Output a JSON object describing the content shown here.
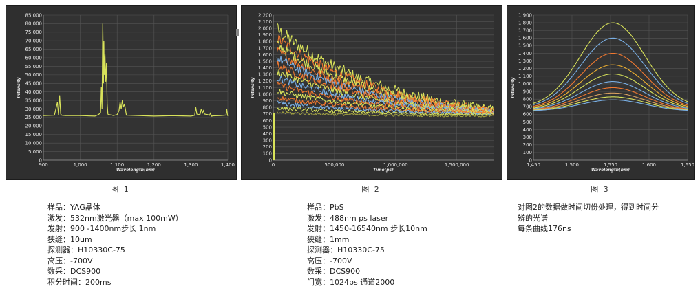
{
  "chart_data": [
    {
      "type": "line",
      "xlabel": "Wavelength(nm)",
      "ylabel": "Intensity",
      "xlim": [
        900,
        1400
      ],
      "ylim": [
        0,
        85000
      ],
      "xticks": [
        "900",
        "1,000",
        "1,100",
        "1,200",
        "1,300",
        "1,400"
      ],
      "yticks": [
        "0",
        "5,000",
        "10,000",
        "15,000",
        "20,000",
        "25,000",
        "30,000",
        "35,000",
        "40,000",
        "45,000",
        "50,000",
        "55,000",
        "60,000",
        "65,000",
        "70,000",
        "75,000",
        "80,000",
        "85,000"
      ],
      "grid": true,
      "color": "#d8e25a",
      "series": [
        {
          "x": [
            900,
            930,
            938,
            941,
            944,
            947,
            950,
            960,
            1000,
            1040,
            1050,
            1055,
            1057,
            1059,
            1061,
            1063,
            1064,
            1065,
            1067,
            1069,
            1071,
            1073,
            1075,
            1080,
            1090,
            1100,
            1105,
            1108,
            1111,
            1114,
            1117,
            1120,
            1125,
            1150,
            1200,
            1250,
            1300,
            1310,
            1313,
            1316,
            1320,
            1325,
            1328,
            1331,
            1334,
            1337,
            1345,
            1350,
            1353,
            1356,
            1360,
            1380,
            1395,
            1397,
            1399,
            1400
          ],
          "y": [
            26000,
            26500,
            34000,
            26500,
            38000,
            27000,
            26000,
            26000,
            26000,
            26000,
            26500,
            28000,
            43000,
            30000,
            80000,
            45000,
            70000,
            50000,
            62000,
            46000,
            57000,
            33000,
            27000,
            26500,
            26000,
            26500,
            29000,
            34000,
            30000,
            35000,
            31000,
            33000,
            26500,
            26000,
            26000,
            26000,
            26000,
            26500,
            31000,
            27000,
            26500,
            27000,
            30000,
            27500,
            29000,
            27000,
            26500,
            26000,
            27500,
            26000,
            26000,
            26000,
            26500,
            30000,
            26500,
            26000
          ]
        }
      ]
    },
    {
      "type": "line",
      "xlabel": "Time(ps)",
      "ylabel": "Intensity",
      "xlim": [
        0,
        1800000
      ],
      "ylim": [
        0,
        2200
      ],
      "xticks": [
        "0",
        "500,000",
        "1,000,000",
        "1,500,000"
      ],
      "yticks": [
        "0",
        "100",
        "200",
        "300",
        "400",
        "500",
        "600",
        "700",
        "800",
        "900",
        "1,000",
        "1,100",
        "1,200",
        "1,300",
        "1,400",
        "1,500",
        "1,600",
        "1,700",
        "1,800",
        "1,900",
        "2,000",
        "2,100",
        "2,200"
      ],
      "grid": true,
      "series": [
        {
          "color": "#d8e25a",
          "start": 1990,
          "end": 770,
          "noise": 110
        },
        {
          "color": "#f07830",
          "start": 1850,
          "end": 760,
          "noise": 90
        },
        {
          "color": "#d8e25a",
          "start": 1750,
          "end": 750,
          "noise": 80
        },
        {
          "color": "#f07830",
          "start": 1650,
          "end": 745,
          "noise": 80
        },
        {
          "color": "#7ab0e6",
          "start": 1550,
          "end": 740,
          "noise": 70
        },
        {
          "color": "#f07830",
          "start": 1450,
          "end": 735,
          "noise": 65
        },
        {
          "color": "#d8e25a",
          "start": 1350,
          "end": 730,
          "noise": 60
        },
        {
          "color": "#7ab0e6",
          "start": 1250,
          "end": 725,
          "noise": 55
        },
        {
          "color": "#f07830",
          "start": 1150,
          "end": 720,
          "noise": 50
        },
        {
          "color": "#d8e25a",
          "start": 1050,
          "end": 715,
          "noise": 45
        },
        {
          "color": "#f07830",
          "start": 950,
          "end": 705,
          "noise": 40
        },
        {
          "color": "#7ab0e6",
          "start": 870,
          "end": 700,
          "noise": 35
        },
        {
          "color": "#d8e25a",
          "start": 790,
          "end": 690,
          "noise": 30
        },
        {
          "color": "#a0a040",
          "start": 720,
          "end": 670,
          "noise": 25
        }
      ]
    },
    {
      "type": "line",
      "xlabel": "Wavelength(nm)",
      "ylabel": "Intensity",
      "xlim": [
        1450,
        1650
      ],
      "ylim": [
        0,
        1900
      ],
      "xticks": [
        "1,450",
        "1,500",
        "1,550",
        "1,600",
        "1,650"
      ],
      "yticks": [
        "0",
        "100",
        "200",
        "300",
        "400",
        "500",
        "600",
        "700",
        "800",
        "900",
        "1,000",
        "1,100",
        "1,200",
        "1,300",
        "1,400",
        "1,500",
        "1,600",
        "1,700",
        "1,800",
        "1,900"
      ],
      "grid": true,
      "center": 1553,
      "width": 42,
      "series": [
        {
          "color": "#d8e25a",
          "base": 690,
          "peak": 1800
        },
        {
          "color": "#7ab0e6",
          "base": 680,
          "peak": 1600
        },
        {
          "color": "#f07830",
          "base": 670,
          "peak": 1400
        },
        {
          "color": "#f0b030",
          "base": 665,
          "peak": 1250
        },
        {
          "color": "#d8e25a",
          "base": 660,
          "peak": 1130
        },
        {
          "color": "#7ab0e6",
          "base": 655,
          "peak": 1030
        },
        {
          "color": "#f07830",
          "base": 650,
          "peak": 950
        },
        {
          "color": "#d8a060",
          "base": 648,
          "peak": 880
        },
        {
          "color": "#d8e25a",
          "base": 645,
          "peak": 830
        },
        {
          "color": "#7ab0e6",
          "base": 642,
          "peak": 790
        }
      ]
    }
  ],
  "captions": [
    "图 1",
    "图 2",
    "图 3"
  ],
  "info1": [
    "样品：YAG晶体",
    "激发：532nm激光器（max 100mW）",
    "发射：900 -1400nm步长 1nm",
    "狭缝：10um",
    "探测器：H10330C-75",
    "高压：-700V",
    "数采：DCS900",
    "积分时间：200ms"
  ],
  "info2": [
    "样品：PbS",
    "激发：488nm ps laser",
    "发射：1450-16540nm 步长10nm",
    "狭缝：1mm",
    "探测器：H10330C-75",
    "高压：-700V",
    "数采：DCS900",
    "门宽：1024ps  通道2000"
  ],
  "info3": [
    "对图2的数据做时间切份处理，得到时间分",
    "辨的光谱",
    "每条曲线176ns"
  ]
}
